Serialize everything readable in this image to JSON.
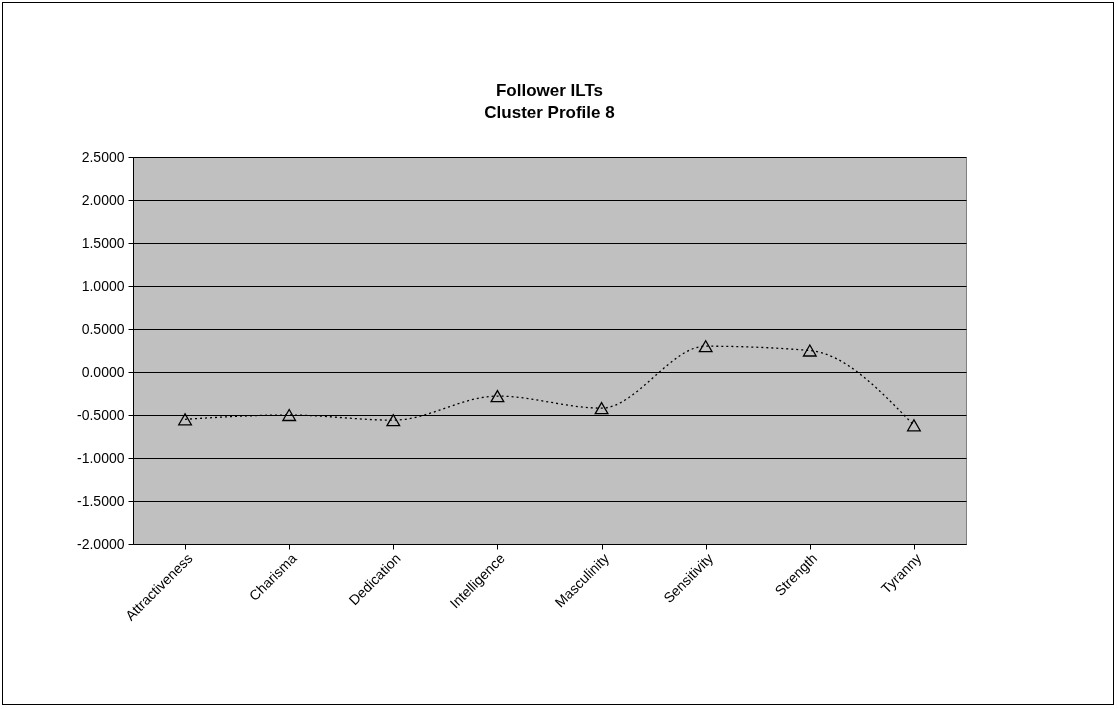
{
  "chart_data": {
    "type": "line",
    "title": "Follower ILTs\nCluster Profile 8",
    "categories": [
      "Attractiveness",
      "Charisma",
      "Dedication",
      "Intelligence",
      "Masculinity",
      "Sensitivity",
      "Strength",
      "Tyranny"
    ],
    "series": [
      {
        "color": "#000000",
        "values": [
          -0.55,
          -0.5,
          -0.56,
          -0.28,
          -0.42,
          0.3,
          0.25,
          -0.62
        ]
      }
    ],
    "ylim": [
      -2,
      2.5
    ],
    "yticks": [
      {
        "value": -2,
        "label": "-2.0000"
      },
      {
        "value": -1.5,
        "label": "-1.5000"
      },
      {
        "value": -1,
        "label": "-1.0000"
      },
      {
        "value": -0.5,
        "label": "-0.5000"
      },
      {
        "value": 0,
        "label": "0.0000"
      },
      {
        "value": 0.5,
        "label": "0.5000"
      },
      {
        "value": 1,
        "label": "1.0000"
      },
      {
        "value": 1.5,
        "label": "1.5000"
      },
      {
        "value": 2,
        "label": "2.0000"
      },
      {
        "value": 2.5,
        "label": "2.5000"
      }
    ],
    "grid": "y",
    "marker": "triangle",
    "line_style": "dotted",
    "legend": false
  }
}
